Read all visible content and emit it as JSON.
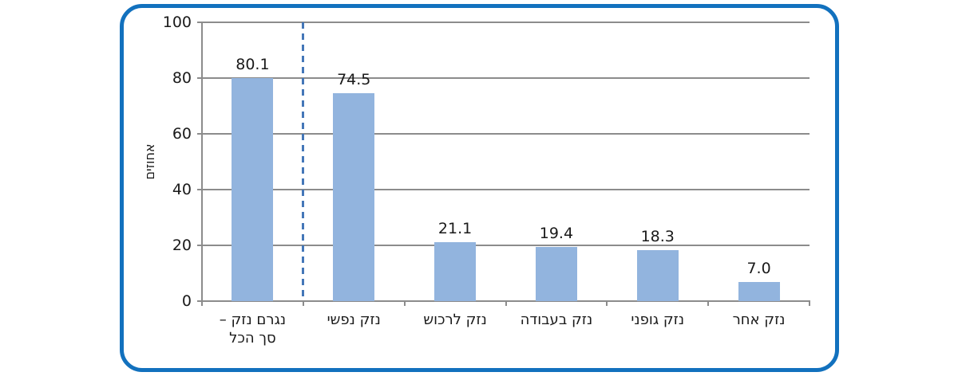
{
  "frame": {
    "border_color": "#1271BE"
  },
  "chart_data": {
    "type": "bar",
    "title": "",
    "categories": [
      "נגרם נזק –\nסך הכל",
      "נזק נפשי",
      "נזק לרכוש",
      "נזק בעבודה",
      "נזק גופני",
      "נזק אחר"
    ],
    "values": [
      80.1,
      74.5,
      21.1,
      19.4,
      18.3,
      7.0
    ],
    "value_labels": [
      "80.1",
      "74.5",
      "21.1",
      "19.4",
      "18.3",
      "7.0"
    ],
    "xlabel": "",
    "ylabel": "אחוזים",
    "ylim": [
      0,
      100
    ],
    "yticks": [
      0,
      20,
      40,
      60,
      80,
      100
    ],
    "ytick_labels": [
      "0",
      "20",
      "40",
      "60",
      "80",
      "100"
    ],
    "grid": true,
    "legend": false,
    "rtl": true,
    "separator_after_category_index": 0,
    "colors": {
      "bar_fill": "#92B4DE",
      "gridline": "#8C8C8C",
      "axis": "#8C8C8C",
      "separator": "#4477B8",
      "text": "#1a1a1a",
      "frame_border": "#1271BE"
    }
  }
}
